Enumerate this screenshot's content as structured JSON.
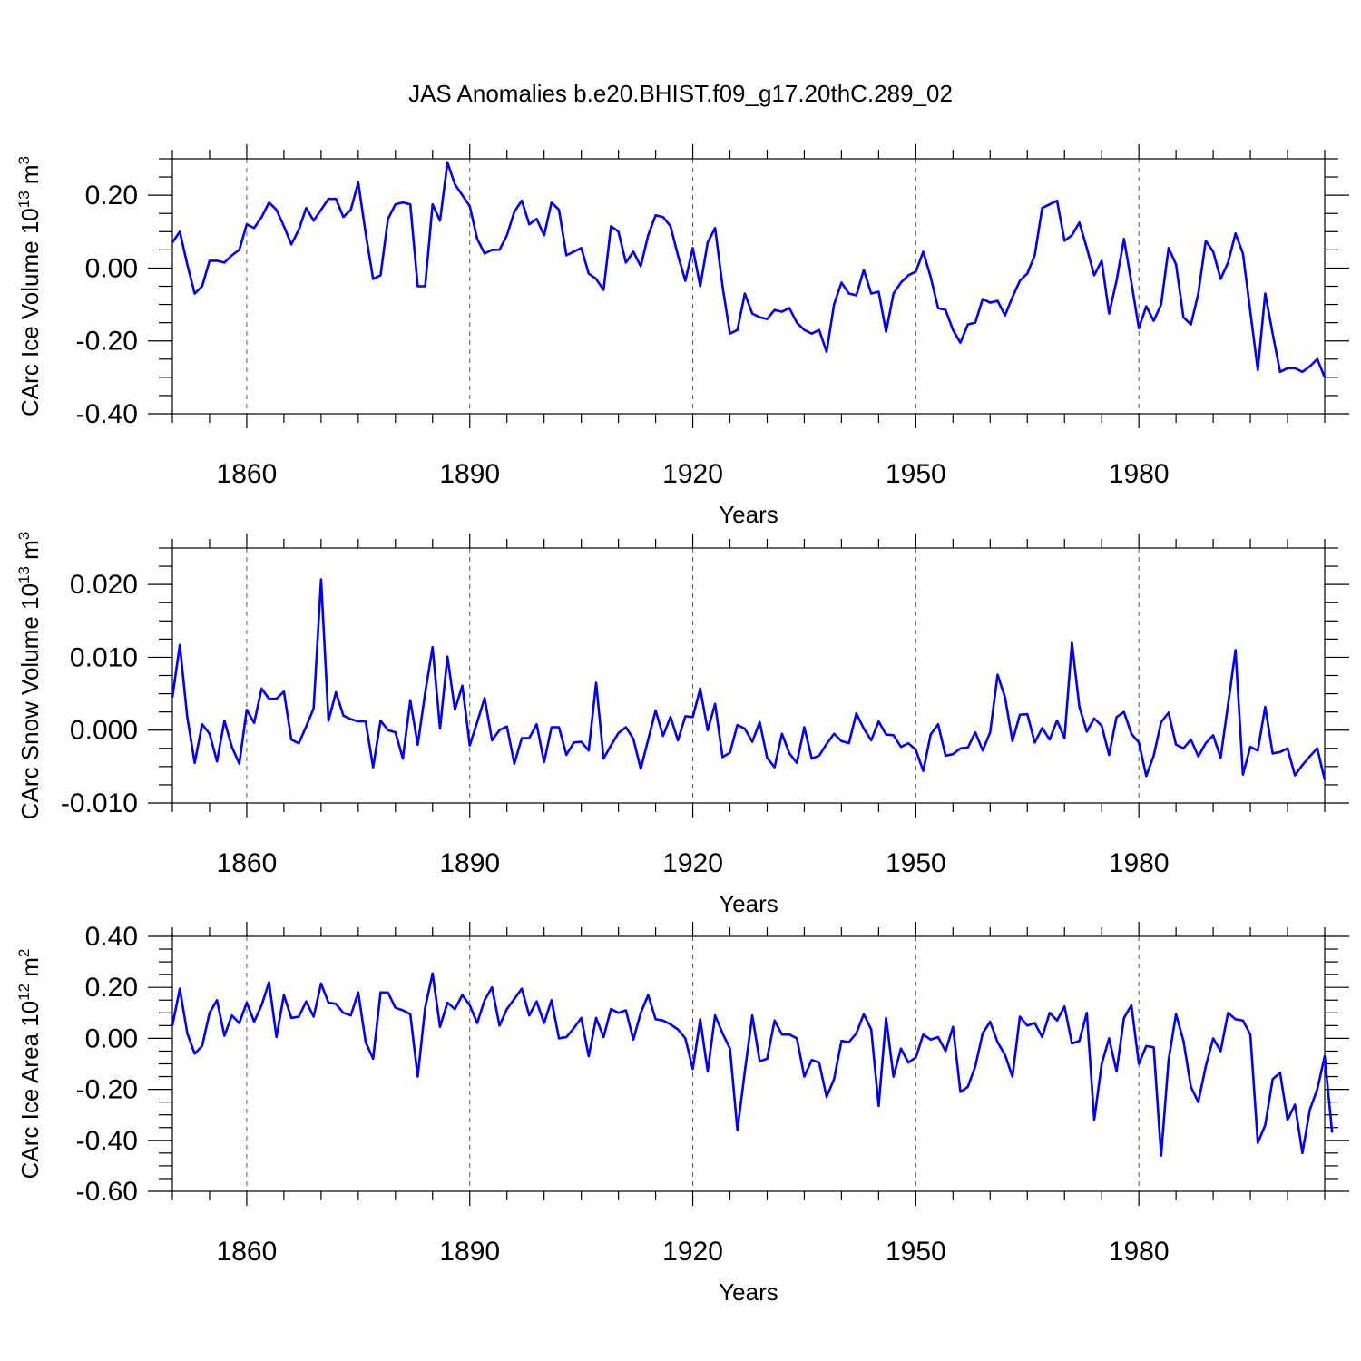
{
  "title": "JAS Anomalies b.e20.BHIST.f09_g17.20thC.289_02",
  "colors": {
    "series": "#0000ff",
    "axes": "#000000",
    "grid": "#555555"
  },
  "chart_data": [
    {
      "type": "line",
      "ylabel": "CArc Ice Volume 10",
      "ylabel_exp": "13",
      "ylabel_unit": " m",
      "ylabel_unit_exp": "3",
      "xlabel": "Years",
      "xlim": [
        1850,
        2005
      ],
      "ylim": [
        -0.4,
        0.3
      ],
      "yticks": [
        -0.4,
        -0.2,
        0.0,
        0.2
      ],
      "ytick_labels": [
        "-0.40",
        "-0.20",
        "0.00",
        "0.20"
      ],
      "yminor": 0.05,
      "xticks": [
        1860,
        1890,
        1920,
        1950,
        1980
      ],
      "xtick_labels": [
        "1860",
        "1890",
        "1920",
        "1950",
        "1980"
      ],
      "xminor": 5,
      "vgrid": [
        1860,
        1890,
        1920,
        1950,
        1980
      ],
      "x_start": 1850,
      "values": [
        0.07,
        0.1,
        0.01,
        -0.07,
        -0.05,
        0.02,
        0.02,
        0.015,
        0.035,
        0.05,
        0.12,
        0.11,
        0.14,
        0.18,
        0.16,
        0.115,
        0.065,
        0.105,
        0.165,
        0.13,
        0.16,
        0.19,
        0.19,
        0.14,
        0.16,
        0.235,
        0.095,
        -0.03,
        -0.02,
        0.135,
        0.175,
        0.18,
        0.175,
        -0.05,
        -0.05,
        0.175,
        0.13,
        0.29,
        0.23,
        0.2,
        0.17,
        0.08,
        0.04,
        0.05,
        0.05,
        0.09,
        0.155,
        0.185,
        0.12,
        0.135,
        0.09,
        0.18,
        0.16,
        0.035,
        0.045,
        0.055,
        -0.015,
        -0.03,
        -0.06,
        0.115,
        0.1,
        0.015,
        0.045,
        0.005,
        0.09,
        0.145,
        0.14,
        0.115,
        0.035,
        -0.035,
        0.055,
        -0.05,
        0.07,
        0.11,
        -0.05,
        -0.18,
        -0.17,
        -0.07,
        -0.125,
        -0.135,
        -0.14,
        -0.115,
        -0.12,
        -0.11,
        -0.15,
        -0.17,
        -0.18,
        -0.17,
        -0.23,
        -0.1,
        -0.04,
        -0.07,
        -0.075,
        -0.005,
        -0.07,
        -0.065,
        -0.175,
        -0.07,
        -0.04,
        -0.02,
        -0.01,
        0.045,
        -0.025,
        -0.11,
        -0.115,
        -0.17,
        -0.205,
        -0.155,
        -0.15,
        -0.085,
        -0.095,
        -0.09,
        -0.13,
        -0.08,
        -0.035,
        -0.015,
        0.035,
        0.165,
        0.175,
        0.185,
        0.075,
        0.09,
        0.125,
        0.055,
        -0.02,
        0.02,
        -0.125,
        -0.035,
        0.08,
        -0.04,
        -0.165,
        -0.105,
        -0.145,
        -0.1,
        0.055,
        0.01,
        -0.135,
        -0.155,
        -0.07,
        0.075,
        0.045,
        -0.03,
        0.015,
        0.095,
        0.04,
        -0.12,
        -0.28,
        -0.07,
        -0.18,
        -0.285,
        -0.275,
        -0.275,
        -0.285,
        -0.27,
        -0.25,
        -0.3
      ]
    },
    {
      "type": "line",
      "ylabel": "CArc Snow Volume 10",
      "ylabel_exp": "13",
      "ylabel_unit": " m",
      "ylabel_unit_exp": "3",
      "xlabel": "Years",
      "xlim": [
        1850,
        2005
      ],
      "ylim": [
        -0.01,
        0.025
      ],
      "yticks": [
        -0.01,
        0.0,
        0.01,
        0.02
      ],
      "ytick_labels": [
        "-0.010",
        "0.000",
        "0.010",
        "0.020"
      ],
      "yminor": 0.0025,
      "xticks": [
        1860,
        1890,
        1920,
        1950,
        1980
      ],
      "xtick_labels": [
        "1860",
        "1890",
        "1920",
        "1950",
        "1980"
      ],
      "xminor": 5,
      "vgrid": [
        1860,
        1890,
        1920,
        1950,
        1980
      ],
      "x_start": 1850,
      "values": [
        0.0045,
        0.0117,
        0.0018,
        -0.0045,
        0.0008,
        -0.0005,
        -0.0043,
        0.0013,
        -0.0023,
        -0.0046,
        0.0028,
        0.001,
        0.0057,
        0.0043,
        0.0043,
        0.0053,
        -0.0013,
        -0.0018,
        0.0005,
        0.003,
        0.0207,
        0.0013,
        0.0052,
        0.002,
        0.0015,
        0.0012,
        0.0012,
        -0.0051,
        0.0013,
        0.0,
        -0.0003,
        -0.0039,
        0.0041,
        -0.002,
        0.0051,
        0.0114,
        0.0002,
        0.0101,
        0.0028,
        0.0061,
        -0.0021,
        0.0011,
        0.0044,
        -0.0014,
        0.0,
        0.0005,
        -0.0046,
        -0.0011,
        -0.0011,
        0.0008,
        -0.0044,
        0.0004,
        0.0004,
        -0.0034,
        -0.0017,
        -0.0016,
        -0.0028,
        0.0065,
        -0.0039,
        -0.0021,
        -0.0004,
        0.0004,
        -0.0012,
        -0.0053,
        -0.0013,
        0.0027,
        -0.0008,
        0.0018,
        -0.0014,
        0.0019,
        0.0018,
        0.0057,
        0.0,
        0.0036,
        -0.0037,
        -0.0031,
        0.0007,
        0.0002,
        -0.0016,
        0.0011,
        -0.0038,
        -0.0051,
        -0.0005,
        -0.0032,
        -0.0045,
        0.0004,
        -0.0039,
        -0.0035,
        -0.0019,
        -0.0005,
        -0.0015,
        -0.0018,
        0.0023,
        0.0002,
        -0.0014,
        0.0012,
        -0.0006,
        -0.0007,
        -0.0023,
        -0.0018,
        -0.0027,
        -0.0056,
        -0.0006,
        0.0008,
        -0.0035,
        -0.0033,
        -0.0025,
        -0.0024,
        -0.0003,
        -0.0028,
        -0.0003,
        0.0076,
        0.0045,
        -0.0015,
        0.0021,
        0.0022,
        -0.0017,
        0.0003,
        -0.0013,
        0.0013,
        -0.0011,
        0.012,
        0.0032,
        -0.0002,
        0.0016,
        0.0006,
        -0.0034,
        0.0018,
        0.0025,
        -0.0005,
        -0.0017,
        -0.0063,
        -0.0035,
        0.0011,
        0.0024,
        -0.002,
        -0.0025,
        -0.0013,
        -0.0036,
        -0.0018,
        -0.0007,
        -0.0038,
        0.0035,
        0.011,
        -0.0061,
        -0.0023,
        -0.0028,
        0.0032,
        -0.0032,
        -0.003,
        -0.0025,
        -0.0062,
        -0.0048,
        -0.0036,
        -0.0025,
        -0.0068
      ]
    },
    {
      "type": "line",
      "ylabel": "CArc Ice Area 10",
      "ylabel_exp": "12",
      "ylabel_unit": " m",
      "ylabel_unit_exp": "2",
      "xlabel": "Years",
      "xlim": [
        1850,
        2005
      ],
      "ylim": [
        -0.6,
        0.4
      ],
      "yticks": [
        -0.6,
        -0.4,
        -0.2,
        0.0,
        0.2,
        0.4
      ],
      "ytick_labels": [
        "-0.60",
        "-0.40",
        "-0.20",
        "0.00",
        "0.20",
        "0.40"
      ],
      "yminor": 0.05,
      "xticks": [
        1860,
        1890,
        1920,
        1950,
        1980
      ],
      "xtick_labels": [
        "1860",
        "1890",
        "1920",
        "1950",
        "1980"
      ],
      "xminor": 5,
      "vgrid": [
        1860,
        1890,
        1920,
        1950,
        1980
      ],
      "x_start": 1850,
      "values": [
        0.05,
        0.195,
        0.02,
        -0.06,
        -0.03,
        0.1,
        0.15,
        0.01,
        0.09,
        0.06,
        0.14,
        0.065,
        0.13,
        0.22,
        0.005,
        0.17,
        0.08,
        0.085,
        0.145,
        0.085,
        0.215,
        0.14,
        0.135,
        0.1,
        0.09,
        0.18,
        -0.015,
        -0.08,
        0.18,
        0.18,
        0.12,
        0.11,
        0.095,
        -0.15,
        0.12,
        0.255,
        0.045,
        0.14,
        0.115,
        0.17,
        0.13,
        0.06,
        0.15,
        0.2,
        0.05,
        0.115,
        0.155,
        0.195,
        0.09,
        0.145,
        0.06,
        0.15,
        0.0,
        0.005,
        0.04,
        0.08,
        -0.07,
        0.08,
        0.005,
        0.115,
        0.1,
        0.11,
        -0.005,
        0.1,
        0.17,
        0.075,
        0.07,
        0.055,
        0.035,
        0.0,
        -0.12,
        0.075,
        -0.13,
        0.09,
        0.02,
        -0.04,
        -0.36,
        -0.13,
        0.09,
        -0.09,
        -0.08,
        0.07,
        0.015,
        0.015,
        0.0,
        -0.15,
        -0.085,
        -0.095,
        -0.23,
        -0.16,
        -0.01,
        -0.015,
        0.02,
        0.095,
        0.035,
        -0.265,
        0.08,
        -0.15,
        -0.04,
        -0.095,
        -0.075,
        0.015,
        -0.005,
        0.005,
        -0.05,
        0.045,
        -0.21,
        -0.19,
        -0.11,
        0.02,
        0.065,
        -0.015,
        -0.065,
        -0.15,
        0.085,
        0.05,
        0.06,
        0.005,
        0.1,
        0.07,
        0.125,
        -0.02,
        -0.01,
        0.1,
        -0.32,
        -0.1,
        0.0,
        -0.13,
        0.08,
        0.13,
        -0.1,
        -0.03,
        -0.035,
        -0.46,
        -0.085,
        0.095,
        -0.01,
        -0.19,
        -0.25,
        -0.11,
        0.0,
        -0.05,
        0.1,
        0.075,
        0.07,
        0.015,
        -0.41,
        -0.34,
        -0.16,
        -0.135,
        -0.32,
        -0.26,
        -0.45,
        -0.28,
        -0.2,
        -0.07,
        -0.37
      ]
    }
  ]
}
